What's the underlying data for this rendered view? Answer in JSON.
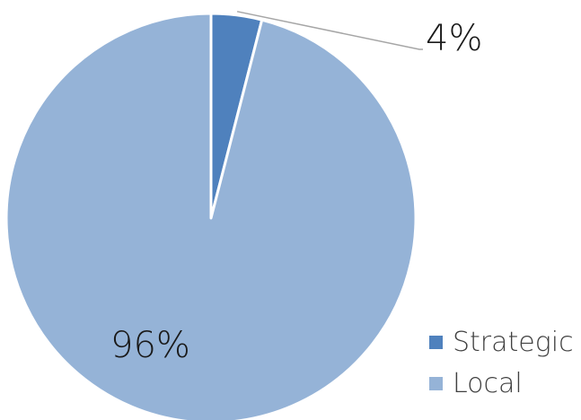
{
  "chart_data": {
    "type": "pie",
    "categories": [
      "Strategic",
      "Local"
    ],
    "values": [
      4,
      96
    ],
    "data_labels": [
      "4%",
      "96%"
    ],
    "colors": [
      "#4f81bd",
      "#95b3d7"
    ],
    "title": "",
    "legend_position": "bottom-right",
    "start_angle": "top",
    "direction": "clockwise"
  }
}
